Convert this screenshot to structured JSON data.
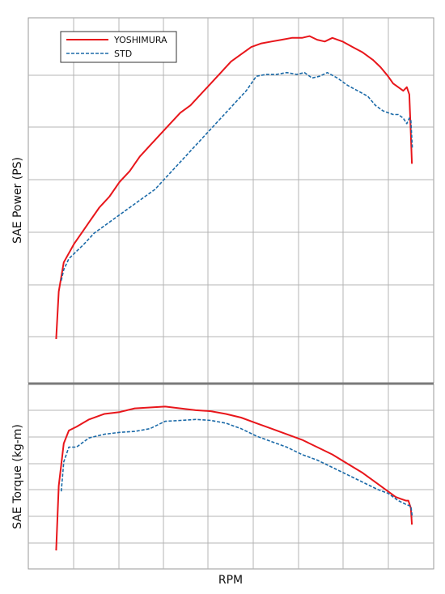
{
  "chart_data": [
    {
      "type": "line",
      "title": "",
      "xlabel": "RPM",
      "ylabel": "SAE Power (PS)",
      "grid": true,
      "legend": {
        "position": "top-left"
      },
      "series": [
        {
          "name": "YOSHIMURA",
          "color": "#e8161b",
          "style": "solid",
          "points": [
            [
              0.55,
              0.12
            ],
            [
              0.6,
              0.25
            ],
            [
              0.7,
              0.33
            ],
            [
              0.9,
              0.38
            ],
            [
              1.05,
              0.41
            ],
            [
              1.2,
              0.44
            ],
            [
              1.4,
              0.48
            ],
            [
              1.6,
              0.51
            ],
            [
              1.8,
              0.55
            ],
            [
              2.0,
              0.58
            ],
            [
              2.2,
              0.62
            ],
            [
              2.4,
              0.65
            ],
            [
              2.6,
              0.68
            ],
            [
              2.8,
              0.71
            ],
            [
              3.0,
              0.74
            ],
            [
              3.2,
              0.76
            ],
            [
              3.4,
              0.79
            ],
            [
              3.6,
              0.82
            ],
            [
              3.8,
              0.85
            ],
            [
              4.0,
              0.88
            ],
            [
              4.2,
              0.9
            ],
            [
              4.4,
              0.92
            ],
            [
              4.6,
              0.93
            ],
            [
              4.8,
              0.935
            ],
            [
              5.0,
              0.94
            ],
            [
              5.2,
              0.945
            ],
            [
              5.4,
              0.945
            ],
            [
              5.55,
              0.95
            ],
            [
              5.7,
              0.94
            ],
            [
              5.85,
              0.935
            ],
            [
              6.0,
              0.945
            ],
            [
              6.2,
              0.935
            ],
            [
              6.4,
              0.92
            ],
            [
              6.6,
              0.905
            ],
            [
              6.8,
              0.885
            ],
            [
              6.95,
              0.865
            ],
            [
              7.1,
              0.84
            ],
            [
              7.2,
              0.82
            ],
            [
              7.3,
              0.81
            ],
            [
              7.4,
              0.8
            ],
            [
              7.47,
              0.81
            ],
            [
              7.52,
              0.79
            ],
            [
              7.55,
              0.68
            ],
            [
              7.57,
              0.6
            ]
          ]
        },
        {
          "name": "STD",
          "color": "#1b6aa8",
          "style": "dashed",
          "points": [
            [
              0.65,
              0.28
            ],
            [
              0.7,
              0.31
            ],
            [
              0.8,
              0.34
            ],
            [
              0.95,
              0.36
            ],
            [
              1.1,
              0.38
            ],
            [
              1.3,
              0.41
            ],
            [
              1.5,
              0.43
            ],
            [
              1.7,
              0.45
            ],
            [
              1.9,
              0.47
            ],
            [
              2.1,
              0.49
            ],
            [
              2.3,
              0.51
            ],
            [
              2.5,
              0.53
            ],
            [
              2.7,
              0.56
            ],
            [
              2.9,
              0.59
            ],
            [
              3.1,
              0.62
            ],
            [
              3.3,
              0.65
            ],
            [
              3.5,
              0.68
            ],
            [
              3.7,
              0.71
            ],
            [
              3.9,
              0.74
            ],
            [
              4.1,
              0.77
            ],
            [
              4.3,
              0.8
            ],
            [
              4.5,
              0.84
            ],
            [
              4.7,
              0.845
            ],
            [
              4.9,
              0.845
            ],
            [
              5.1,
              0.85
            ],
            [
              5.3,
              0.845
            ],
            [
              5.45,
              0.85
            ],
            [
              5.6,
              0.835
            ],
            [
              5.75,
              0.84
            ],
            [
              5.9,
              0.85
            ],
            [
              6.1,
              0.835
            ],
            [
              6.3,
              0.815
            ],
            [
              6.5,
              0.8
            ],
            [
              6.7,
              0.785
            ],
            [
              6.85,
              0.76
            ],
            [
              7.0,
              0.745
            ],
            [
              7.1,
              0.74
            ],
            [
              7.2,
              0.735
            ],
            [
              7.3,
              0.735
            ],
            [
              7.4,
              0.725
            ],
            [
              7.47,
              0.71
            ],
            [
              7.52,
              0.725
            ],
            [
              7.55,
              0.72
            ],
            [
              7.58,
              0.64
            ]
          ]
        }
      ]
    },
    {
      "type": "line",
      "title": "",
      "xlabel": "RPM",
      "ylabel": "SAE Torque (kg-m)",
      "grid": true,
      "series": [
        {
          "name": "YOSHIMURA",
          "color": "#e8161b",
          "style": "solid",
          "points": [
            [
              0.55,
              0.1
            ],
            [
              0.6,
              0.45
            ],
            [
              0.7,
              0.68
            ],
            [
              0.8,
              0.75
            ],
            [
              0.95,
              0.77
            ],
            [
              1.2,
              0.81
            ],
            [
              1.5,
              0.84
            ],
            [
              1.8,
              0.85
            ],
            [
              2.1,
              0.87
            ],
            [
              2.4,
              0.875
            ],
            [
              2.7,
              0.88
            ],
            [
              3.0,
              0.87
            ],
            [
              3.3,
              0.86
            ],
            [
              3.6,
              0.855
            ],
            [
              3.9,
              0.84
            ],
            [
              4.2,
              0.82
            ],
            [
              4.5,
              0.79
            ],
            [
              4.8,
              0.76
            ],
            [
              5.1,
              0.73
            ],
            [
              5.4,
              0.7
            ],
            [
              5.7,
              0.66
            ],
            [
              6.0,
              0.62
            ],
            [
              6.3,
              0.57
            ],
            [
              6.6,
              0.52
            ],
            [
              6.9,
              0.46
            ],
            [
              7.1,
              0.42
            ],
            [
              7.25,
              0.39
            ],
            [
              7.35,
              0.38
            ],
            [
              7.45,
              0.37
            ],
            [
              7.5,
              0.37
            ],
            [
              7.55,
              0.33
            ],
            [
              7.57,
              0.24
            ]
          ]
        },
        {
          "name": "STD",
          "color": "#1b6aa8",
          "style": "dashed",
          "points": [
            [
              0.65,
              0.42
            ],
            [
              0.7,
              0.58
            ],
            [
              0.8,
              0.66
            ],
            [
              0.95,
              0.66
            ],
            [
              1.2,
              0.71
            ],
            [
              1.5,
              0.73
            ],
            [
              1.8,
              0.74
            ],
            [
              2.1,
              0.745
            ],
            [
              2.4,
              0.76
            ],
            [
              2.7,
              0.8
            ],
            [
              3.0,
              0.805
            ],
            [
              3.3,
              0.81
            ],
            [
              3.6,
              0.805
            ],
            [
              3.9,
              0.79
            ],
            [
              4.2,
              0.76
            ],
            [
              4.5,
              0.72
            ],
            [
              4.8,
              0.69
            ],
            [
              5.1,
              0.66
            ],
            [
              5.4,
              0.62
            ],
            [
              5.7,
              0.59
            ],
            [
              6.0,
              0.55
            ],
            [
              6.3,
              0.51
            ],
            [
              6.6,
              0.47
            ],
            [
              6.9,
              0.43
            ],
            [
              7.1,
              0.41
            ],
            [
              7.3,
              0.37
            ],
            [
              7.45,
              0.35
            ],
            [
              7.55,
              0.34
            ],
            [
              7.58,
              0.28
            ]
          ]
        }
      ]
    }
  ]
}
